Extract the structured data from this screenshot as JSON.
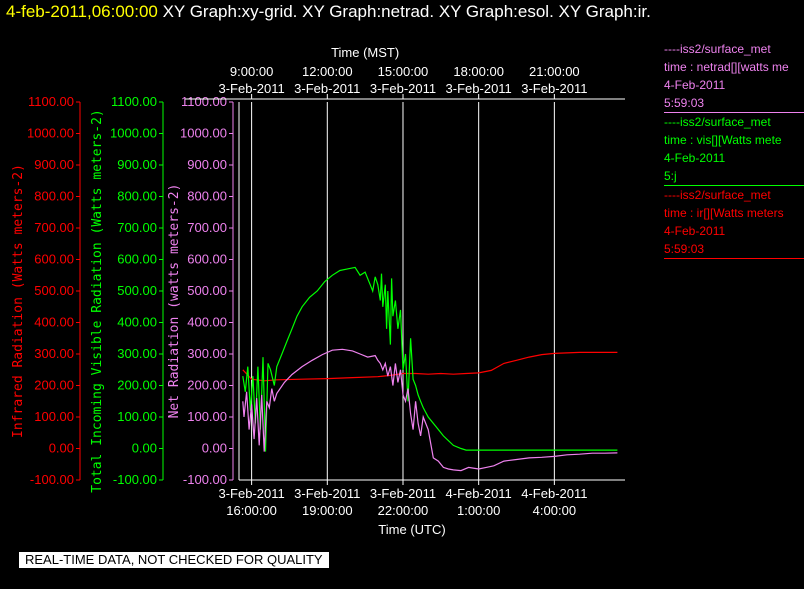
{
  "header": {
    "timestamp": "4-feb-2011,06:00:00",
    "graph_titles": " XY Graph:xy-grid.  XY Graph:netrad.  XY Graph:esol.  XY Graph:ir."
  },
  "legend": [
    {
      "lines": [
        "----iss2/surface_met",
        "time : netrad[][watts me",
        "4-Feb-2011",
        "5:59:03"
      ],
      "color": "#ee82ee"
    },
    {
      "lines": [
        "----iss2/surface_met",
        "time : vis[][Watts mete",
        "4-Feb-2011",
        "5:j"
      ],
      "color": "#00ff00"
    },
    {
      "lines": [
        "----iss2/surface_met",
        "time : ir[][Watts meters",
        "4-Feb-2011",
        "5:59:03"
      ],
      "color": "#ff0000"
    }
  ],
  "disclaimer": "REAL-TIME DATA, NOT CHECKED FOR QUALITY",
  "colors": {
    "ir": "#ff0000",
    "vis": "#00ff00",
    "netrad": "#ee82ee",
    "grid": "#ffffff",
    "background": "#000000"
  },
  "chart_data": {
    "type": "line",
    "ylim": [
      -100,
      1100
    ],
    "y_ticks": [
      "1100.00",
      "1000.00",
      "900.00",
      "800.00",
      "700.00",
      "600.00",
      "500.00",
      "400.00",
      "300.00",
      "200.00",
      "100.00",
      "0.00",
      "-100.00"
    ],
    "axes_left": [
      {
        "label": "Infrared Radiation (Watts meters-2)",
        "color": "#ff0000"
      },
      {
        "label": "Total Incoming Visible Radiation (Watts meters-2)",
        "color": "#00ff00"
      },
      {
        "label": "Net Radiation (watts meters-2)",
        "color": "#ee82ee"
      }
    ],
    "xlim_utc_hours": [
      15.5,
      30.8
    ],
    "bottom_axis": {
      "title": "Time (UTC)",
      "ticks": [
        {
          "t": 16,
          "date": "3-Feb-2011",
          "time": "16:00:00"
        },
        {
          "t": 19,
          "date": "3-Feb-2011",
          "time": "19:00:00"
        },
        {
          "t": 22,
          "date": "3-Feb-2011",
          "time": "22:00:00"
        },
        {
          "t": 25,
          "date": "4-Feb-2011",
          "time": "1:00:00"
        },
        {
          "t": 28,
          "date": "4-Feb-2011",
          "time": "4:00:00"
        }
      ]
    },
    "top_axis": {
      "title": "Time (MST)",
      "ticks": [
        {
          "t": 16,
          "time": "9:00:00",
          "date": "3-Feb-2011"
        },
        {
          "t": 19,
          "time": "12:00:00",
          "date": "3-Feb-2011"
        },
        {
          "t": 22,
          "time": "15:00:00",
          "date": "3-Feb-2011"
        },
        {
          "t": 25,
          "time": "18:00:00",
          "date": "3-Feb-2011"
        },
        {
          "t": 28,
          "time": "21:00:00",
          "date": "3-Feb-2011"
        }
      ]
    },
    "grid_x": [
      16,
      19,
      22,
      25,
      28
    ],
    "series": [
      {
        "key": "ir",
        "color": "#ff0000",
        "x": [
          15.65,
          16.0,
          16.5,
          17.0,
          18.0,
          19.0,
          20.0,
          21.0,
          21.5,
          22.0,
          22.5,
          23.0,
          23.5,
          24.0,
          24.5,
          25.0,
          25.5,
          26.0,
          26.5,
          27.0,
          27.5,
          28.0,
          29.0,
          30.0,
          30.5
        ],
        "y": [
          250,
          220,
          215,
          218,
          220,
          222,
          225,
          228,
          232,
          238,
          238,
          236,
          238,
          236,
          238,
          240,
          248,
          270,
          280,
          290,
          298,
          302,
          305,
          305,
          305
        ]
      },
      {
        "key": "vis",
        "color": "#00ff00",
        "x": [
          15.65,
          15.75,
          15.85,
          15.95,
          16.05,
          16.15,
          16.25,
          16.35,
          16.45,
          16.55,
          16.65,
          16.75,
          16.9,
          17.0,
          17.2,
          17.4,
          17.6,
          17.8,
          18.0,
          18.3,
          18.6,
          18.9,
          19.2,
          19.5,
          19.8,
          20.1,
          20.3,
          20.5,
          20.7,
          20.8,
          20.9,
          21.0,
          21.1,
          21.15,
          21.2,
          21.3,
          21.35,
          21.4,
          21.5,
          21.55,
          21.6,
          21.7,
          21.8,
          21.9,
          22.0,
          22.1,
          22.2,
          22.3,
          22.4,
          22.5,
          22.6,
          22.7,
          22.8,
          23.0,
          23.3,
          23.6,
          24.0,
          24.3,
          24.5,
          24.8,
          25.0,
          25.5,
          26.0,
          27.0,
          28.0,
          29.0,
          30.0,
          30.5
        ],
        "y": [
          230,
          180,
          260,
          120,
          230,
          80,
          260,
          60,
          290,
          -10,
          270,
          250,
          200,
          260,
          300,
          340,
          380,
          420,
          450,
          480,
          500,
          530,
          550,
          565,
          570,
          575,
          550,
          560,
          520,
          500,
          545,
          520,
          470,
          555,
          450,
          520,
          380,
          500,
          330,
          540,
          420,
          470,
          380,
          440,
          250,
          300,
          150,
          350,
          220,
          200,
          170,
          150,
          130,
          100,
          70,
          40,
          10,
          0,
          -5,
          -5,
          -5,
          -5,
          -5,
          -5,
          -5,
          -5,
          -5,
          -5
        ]
      },
      {
        "key": "netrad",
        "color": "#ee82ee",
        "x": [
          15.65,
          15.7,
          15.8,
          15.9,
          16.0,
          16.1,
          16.2,
          16.3,
          16.4,
          16.5,
          16.6,
          16.7,
          16.8,
          16.9,
          17.0,
          17.3,
          17.6,
          18.0,
          18.4,
          18.8,
          19.2,
          19.6,
          20.0,
          20.3,
          20.6,
          20.9,
          21.0,
          21.1,
          21.2,
          21.3,
          21.4,
          21.5,
          21.6,
          21.7,
          21.8,
          21.9,
          22.0,
          22.1,
          22.2,
          22.3,
          22.4,
          22.5,
          22.6,
          22.7,
          22.8,
          23.0,
          23.2,
          23.4,
          23.6,
          23.8,
          24.0,
          24.3,
          24.6,
          25.0,
          25.3,
          25.6,
          26.0,
          26.5,
          27.0,
          27.5,
          28.0,
          28.5,
          29.0,
          29.5,
          30.0,
          30.5
        ],
        "y": [
          150,
          100,
          180,
          60,
          140,
          30,
          160,
          10,
          170,
          -10,
          150,
          130,
          190,
          150,
          175,
          210,
          235,
          260,
          280,
          298,
          312,
          315,
          310,
          300,
          290,
          295,
          280,
          270,
          250,
          270,
          230,
          260,
          200,
          270,
          210,
          250,
          170,
          150,
          190,
          110,
          60,
          150,
          80,
          40,
          100,
          60,
          -30,
          -40,
          -60,
          -65,
          -68,
          -70,
          -60,
          -65,
          -60,
          -55,
          -40,
          -35,
          -30,
          -28,
          -25,
          -20,
          -18,
          -15,
          -15,
          -14
        ]
      }
    ]
  }
}
